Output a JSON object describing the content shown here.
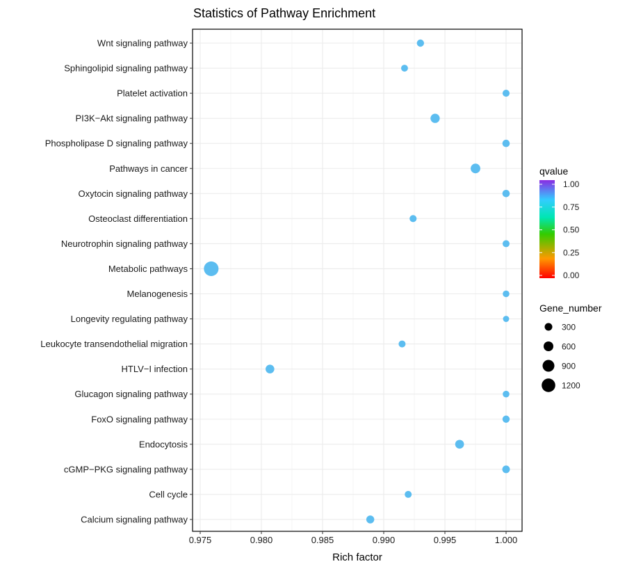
{
  "chart_data": {
    "type": "scatter",
    "title": "Statistics of Pathway Enrichment",
    "xlabel": "Rich factor",
    "ylabel": "",
    "xlim": [
      0.975,
      1.0
    ],
    "xticks": [
      "0.975",
      "0.980",
      "0.985",
      "0.990",
      "0.995",
      "1.000"
    ],
    "grid": true,
    "categories": [
      "Wnt signaling pathway",
      "Sphingolipid signaling pathway",
      "Platelet activation",
      "PI3K−Akt signaling pathway",
      "Phospholipase D signaling pathway",
      "Pathways in cancer",
      "Oxytocin signaling pathway",
      "Osteoclast differentiation",
      "Neurotrophin signaling pathway",
      "Metabolic pathways",
      "Melanogenesis",
      "Longevity regulating pathway",
      "Leukocyte transendothelial migration",
      "HTLV−I infection",
      "Glucagon signaling pathway",
      "FoxO signaling pathway",
      "Endocytosis",
      "cGMP−PKG signaling pathway",
      "Cell cycle",
      "Calcium signaling pathway"
    ],
    "points": [
      {
        "pathway": "Wnt signaling pathway",
        "rich_factor": 0.993,
        "gene_number": 140,
        "qvalue": 0.8
      },
      {
        "pathway": "Sphingolipid signaling pathway",
        "rich_factor": 0.9917,
        "gene_number": 115,
        "qvalue": 0.8
      },
      {
        "pathway": "Platelet activation",
        "rich_factor": 1.0,
        "gene_number": 125,
        "qvalue": 0.8
      },
      {
        "pathway": "PI3K−Akt signaling pathway",
        "rich_factor": 0.9942,
        "gene_number": 340,
        "qvalue": 0.8
      },
      {
        "pathway": "Phospholipase D signaling pathway",
        "rich_factor": 1.0,
        "gene_number": 150,
        "qvalue": 0.8
      },
      {
        "pathway": "Pathways in cancer",
        "rich_factor": 0.9975,
        "gene_number": 390,
        "qvalue": 0.8
      },
      {
        "pathway": "Oxytocin signaling pathway",
        "rich_factor": 1.0,
        "gene_number": 150,
        "qvalue": 0.8
      },
      {
        "pathway": "Osteoclast differentiation",
        "rich_factor": 0.9924,
        "gene_number": 125,
        "qvalue": 0.8
      },
      {
        "pathway": "Neurotrophin signaling pathway",
        "rich_factor": 1.0,
        "gene_number": 120,
        "qvalue": 0.8
      },
      {
        "pathway": "Metabolic pathways",
        "rich_factor": 0.9759,
        "gene_number": 1300,
        "qvalue": 0.8
      },
      {
        "pathway": "Melanogenesis",
        "rich_factor": 1.0,
        "gene_number": 100,
        "qvalue": 0.8
      },
      {
        "pathway": "Longevity regulating pathway",
        "rich_factor": 1.0,
        "gene_number": 70,
        "qvalue": 0.8
      },
      {
        "pathway": "Leukocyte transendothelial migration",
        "rich_factor": 0.9915,
        "gene_number": 120,
        "qvalue": 0.8
      },
      {
        "pathway": "HTLV−I infection",
        "rich_factor": 0.9807,
        "gene_number": 280,
        "qvalue": 0.8
      },
      {
        "pathway": "Glucagon signaling pathway",
        "rich_factor": 1.0,
        "gene_number": 100,
        "qvalue": 0.8
      },
      {
        "pathway": "FoxO signaling pathway",
        "rich_factor": 1.0,
        "gene_number": 140,
        "qvalue": 0.8
      },
      {
        "pathway": "Endocytosis",
        "rich_factor": 0.9962,
        "gene_number": 290,
        "qvalue": 0.8
      },
      {
        "pathway": "cGMP−PKG signaling pathway",
        "rich_factor": 1.0,
        "gene_number": 170,
        "qvalue": 0.8
      },
      {
        "pathway": "Cell cycle",
        "rich_factor": 0.992,
        "gene_number": 120,
        "qvalue": 0.8
      },
      {
        "pathway": "Calcium signaling pathway",
        "rich_factor": 0.9889,
        "gene_number": 200,
        "qvalue": 0.8
      }
    ],
    "legend": {
      "color": {
        "title": "qvalue",
        "ticks": [
          "1.00",
          "0.75",
          "0.50",
          "0.25",
          "0.00"
        ],
        "range": [
          0.0,
          1.0
        ],
        "colors": [
          "#ff0000",
          "#ff9900",
          "#33cc00",
          "#00e6b3",
          "#33ccff",
          "#8a2be2"
        ]
      },
      "size": {
        "title": "Gene_number",
        "values": [
          300,
          600,
          900,
          1200
        ],
        "labels": [
          "300",
          "600",
          "900",
          "1200"
        ]
      },
      "placement": "right"
    },
    "point_color": "#5cbdf0"
  }
}
